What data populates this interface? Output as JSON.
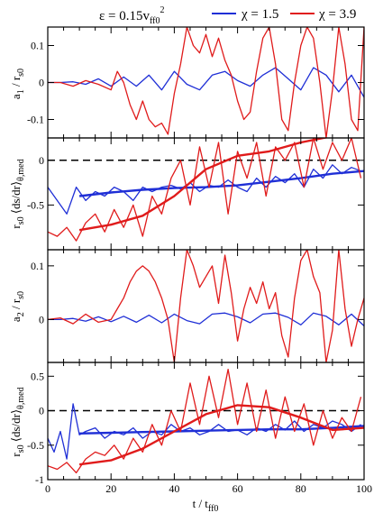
{
  "legend": {
    "epsilon_label": "ε = 0.15v",
    "epsilon_sub": "ff0",
    "epsilon_sup": "2",
    "series_1": "χ = 1.5",
    "series_2": "χ = 3.9"
  },
  "colors": {
    "series_1": "#1f2fd6",
    "series_2": "#e01b1b",
    "axis": "#000000",
    "ref_line": "#000000"
  },
  "x_axis": {
    "label": "t / t",
    "label_sub": "ff0",
    "ticks": [
      "0",
      "20",
      "40",
      "60",
      "80",
      "100"
    ]
  },
  "panel_labels": {
    "p1": {
      "main": "a",
      "sub1": "1",
      "rest": " / r",
      "sub2": "s0"
    },
    "p2": {
      "pre": "r",
      "sub1": "s0",
      "mid": " ⟨ds/dr⟩",
      "sub2": "θ,med"
    },
    "p3": {
      "main": "a",
      "sub1": "2",
      "rest": " / r",
      "sub2": "s0"
    },
    "p4": {
      "pre": "r",
      "sub1": "s0",
      "mid": " ⟨ds/dr⟩",
      "sub2": "θ,med"
    }
  },
  "chart_data": [
    {
      "type": "line",
      "panel": "a1 / rs0",
      "xlim": [
        0,
        100
      ],
      "ylim": [
        -0.15,
        0.15
      ],
      "ytick_labels": [
        "-0.1",
        "0",
        "0.1"
      ],
      "yticks": [
        -0.1,
        0,
        0.1
      ],
      "series": [
        {
          "name": "χ = 1.5",
          "x": [
            0,
            4,
            8,
            12,
            16,
            20,
            24,
            28,
            32,
            36,
            40,
            44,
            48,
            52,
            56,
            60,
            64,
            68,
            72,
            76,
            80,
            84,
            88,
            92,
            96,
            100
          ],
          "y": [
            0,
            0,
            0.002,
            -0.005,
            0.01,
            -0.01,
            0.015,
            -0.01,
            0.02,
            -0.02,
            0.03,
            -0.005,
            -0.02,
            0.02,
            0.03,
            0.005,
            -0.01,
            0.02,
            0.04,
            0.01,
            -0.02,
            0.04,
            0.02,
            -0.025,
            0.02,
            -0.04
          ]
        },
        {
          "name": "χ = 3.9",
          "x": [
            0,
            4,
            8,
            12,
            16,
            20,
            22,
            24,
            26,
            28,
            30,
            32,
            34,
            36,
            38,
            40,
            42,
            44,
            46,
            48,
            50,
            52,
            54,
            56,
            58,
            60,
            62,
            64,
            66,
            68,
            70,
            72,
            74,
            76,
            78,
            80,
            82,
            84,
            86,
            88,
            90,
            92,
            94,
            96,
            98,
            100
          ],
          "y": [
            0,
            0,
            -0.01,
            0.005,
            -0.005,
            -0.02,
            0.03,
            0.0,
            -0.06,
            -0.1,
            -0.05,
            -0.1,
            -0.12,
            -0.11,
            -0.14,
            -0.03,
            0.05,
            0.15,
            0.1,
            0.08,
            0.13,
            0.07,
            0.12,
            0.06,
            0.02,
            -0.05,
            -0.1,
            -0.08,
            0.03,
            0.12,
            0.15,
            0.05,
            -0.1,
            -0.13,
            0.0,
            0.1,
            0.15,
            0.12,
            0.0,
            -0.15,
            -0.02,
            0.15,
            0.05,
            -0.1,
            -0.13,
            0.15
          ]
        }
      ]
    },
    {
      "type": "line",
      "panel": "rs0 <ds/dr>θ,med",
      "xlim": [
        0,
        100
      ],
      "ylim": [
        -1.0,
        0.25
      ],
      "ytick_labels": [
        "-0.5",
        "0"
      ],
      "yticks": [
        -0.5,
        0
      ],
      "reference_line_y": 0,
      "series": [
        {
          "name": "χ = 1.5 (raw)",
          "x": [
            0,
            3,
            6,
            9,
            12,
            15,
            18,
            21,
            24,
            27,
            30,
            33,
            36,
            39,
            42,
            45,
            48,
            51,
            54,
            57,
            60,
            63,
            66,
            69,
            72,
            75,
            78,
            81,
            84,
            87,
            90,
            93,
            96,
            99
          ],
          "y": [
            -0.3,
            -0.45,
            -0.6,
            -0.3,
            -0.45,
            -0.35,
            -0.4,
            -0.3,
            -0.35,
            -0.45,
            -0.3,
            -0.35,
            -0.3,
            -0.28,
            -0.32,
            -0.25,
            -0.35,
            -0.28,
            -0.3,
            -0.22,
            -0.3,
            -0.35,
            -0.2,
            -0.3,
            -0.18,
            -0.25,
            -0.15,
            -0.3,
            -0.1,
            -0.2,
            -0.05,
            -0.15,
            -0.08,
            -0.12
          ]
        },
        {
          "name": "χ = 1.5 (smoothed)",
          "x": [
            10,
            20,
            30,
            40,
            50,
            60,
            70,
            80,
            90,
            100
          ],
          "y": [
            -0.4,
            -0.36,
            -0.33,
            -0.31,
            -0.3,
            -0.28,
            -0.24,
            -0.2,
            -0.15,
            -0.12
          ]
        },
        {
          "name": "χ = 3.9 (raw)",
          "x": [
            0,
            3,
            6,
            9,
            12,
            15,
            18,
            21,
            24,
            27,
            30,
            33,
            36,
            39,
            42,
            45,
            48,
            51,
            54,
            57,
            60,
            63,
            66,
            69,
            72,
            75,
            78,
            81,
            84,
            87,
            90,
            93,
            96,
            99
          ],
          "y": [
            -0.8,
            -0.85,
            -0.75,
            -0.9,
            -0.7,
            -0.6,
            -0.8,
            -0.55,
            -0.75,
            -0.5,
            -0.85,
            -0.4,
            -0.6,
            -0.2,
            0.0,
            -0.5,
            0.15,
            -0.3,
            0.2,
            -0.6,
            0.1,
            -0.2,
            0.2,
            -0.4,
            0.15,
            0.0,
            0.2,
            -0.3,
            0.25,
            -0.1,
            0.2,
            0.0,
            0.25,
            -0.2
          ]
        },
        {
          "name": "χ = 3.9 (smoothed)",
          "x": [
            10,
            20,
            30,
            40,
            50,
            60,
            70,
            80,
            90,
            100
          ],
          "y": [
            -0.78,
            -0.72,
            -0.62,
            -0.4,
            -0.1,
            0.05,
            0.1,
            0.2,
            0.27,
            0.3
          ]
        }
      ]
    },
    {
      "type": "line",
      "panel": "a2 / rs0",
      "xlim": [
        0,
        100
      ],
      "ylim": [
        -0.08,
        0.13
      ],
      "ytick_labels": [
        "0",
        "0.1"
      ],
      "yticks": [
        0,
        0.1
      ],
      "series": [
        {
          "name": "χ = 1.5",
          "x": [
            0,
            4,
            8,
            12,
            16,
            20,
            24,
            28,
            32,
            36,
            40,
            44,
            48,
            52,
            56,
            60,
            64,
            68,
            72,
            76,
            80,
            84,
            88,
            92,
            96,
            100
          ],
          "y": [
            0,
            0,
            0.002,
            -0.003,
            0.005,
            -0.004,
            0.006,
            -0.005,
            0.008,
            -0.006,
            0.01,
            -0.002,
            -0.008,
            0.01,
            0.012,
            0.005,
            -0.006,
            0.01,
            0.012,
            0.004,
            -0.01,
            0.012,
            0.006,
            -0.01,
            0.01,
            -0.012
          ]
        },
        {
          "name": "χ = 3.9",
          "x": [
            0,
            4,
            8,
            12,
            16,
            20,
            22,
            24,
            26,
            28,
            30,
            32,
            34,
            36,
            38,
            40,
            42,
            44,
            46,
            48,
            50,
            52,
            54,
            56,
            58,
            60,
            62,
            64,
            66,
            68,
            70,
            72,
            74,
            76,
            78,
            80,
            82,
            84,
            86,
            88,
            90,
            92,
            94,
            96,
            98,
            100
          ],
          "y": [
            0,
            0.003,
            -0.008,
            0.01,
            -0.005,
            0.0,
            0.02,
            0.04,
            0.07,
            0.09,
            0.1,
            0.09,
            0.07,
            0.04,
            0.0,
            -0.08,
            0.04,
            0.13,
            0.1,
            0.06,
            0.08,
            0.1,
            0.03,
            0.12,
            0.05,
            -0.04,
            0.02,
            0.06,
            0.03,
            0.07,
            0.02,
            0.05,
            -0.03,
            -0.07,
            0.04,
            0.11,
            0.13,
            0.08,
            0.05,
            -0.08,
            -0.02,
            0.13,
            0.02,
            -0.05,
            0.0,
            0.04
          ]
        }
      ]
    },
    {
      "type": "line",
      "panel": "rs0 <ds/dr>θ,med",
      "xlim": [
        0,
        100
      ],
      "ylim": [
        -1.0,
        0.7
      ],
      "ytick_labels": [
        "-1",
        "-0.5",
        "0",
        "0.5"
      ],
      "yticks": [
        -1,
        -0.5,
        0,
        0.5
      ],
      "reference_line_y": 0,
      "series": [
        {
          "name": "χ = 1.5 (raw)",
          "x": [
            0,
            2,
            4,
            6,
            8,
            10,
            12,
            15,
            18,
            21,
            24,
            27,
            30,
            33,
            36,
            39,
            42,
            45,
            48,
            51,
            54,
            57,
            60,
            63,
            66,
            69,
            72,
            75,
            78,
            81,
            84,
            87,
            90,
            93,
            96,
            99
          ],
          "y": [
            -0.4,
            -0.6,
            -0.3,
            -0.7,
            0.1,
            -0.35,
            -0.3,
            -0.25,
            -0.4,
            -0.3,
            -0.35,
            -0.25,
            -0.4,
            -0.3,
            -0.35,
            -0.2,
            -0.3,
            -0.25,
            -0.35,
            -0.3,
            -0.2,
            -0.3,
            -0.28,
            -0.35,
            -0.25,
            -0.3,
            -0.2,
            -0.28,
            -0.15,
            -0.3,
            -0.2,
            -0.25,
            -0.15,
            -0.2,
            -0.3,
            -0.2
          ]
        },
        {
          "name": "χ = 1.5 (smoothed)",
          "x": [
            10,
            20,
            30,
            40,
            50,
            60,
            70,
            80,
            90,
            100
          ],
          "y": [
            -0.33,
            -0.32,
            -0.31,
            -0.3,
            -0.29,
            -0.28,
            -0.27,
            -0.27,
            -0.25,
            -0.22
          ]
        },
        {
          "name": "χ = 3.9 (raw)",
          "x": [
            0,
            3,
            6,
            9,
            12,
            15,
            18,
            21,
            24,
            27,
            30,
            33,
            36,
            39,
            42,
            45,
            48,
            51,
            54,
            57,
            60,
            63,
            66,
            69,
            72,
            75,
            78,
            81,
            84,
            87,
            90,
            93,
            96,
            99
          ],
          "y": [
            -0.8,
            -0.85,
            -0.75,
            -0.9,
            -0.7,
            -0.6,
            -0.65,
            -0.5,
            -0.7,
            -0.4,
            -0.6,
            -0.2,
            -0.5,
            0.0,
            -0.3,
            0.4,
            -0.2,
            0.5,
            -0.1,
            0.6,
            -0.2,
            0.4,
            -0.3,
            0.3,
            -0.4,
            0.2,
            -0.3,
            0.1,
            -0.5,
            0.0,
            -0.4,
            -0.1,
            -0.3,
            0.2
          ]
        },
        {
          "name": "χ = 3.9 (smoothed)",
          "x": [
            10,
            20,
            30,
            40,
            50,
            60,
            70,
            80,
            90,
            100
          ],
          "y": [
            -0.78,
            -0.72,
            -0.55,
            -0.3,
            -0.05,
            0.08,
            0.05,
            -0.1,
            -0.28,
            -0.25
          ]
        }
      ]
    }
  ]
}
